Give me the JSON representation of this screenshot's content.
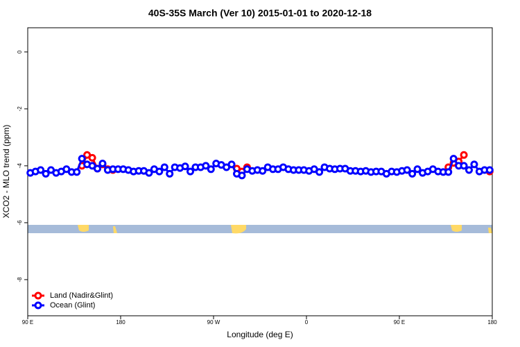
{
  "chart_data": {
    "type": "line",
    "title": "40S-35S March (Ver 10)   2015-01-01 to 2020-12-18",
    "x_label": "Longitude (deg E)",
    "y_label": "XCO2 - MLO trend (ppm)",
    "x": [
      92.5,
      97.5,
      102.5,
      107.5,
      112.5,
      117.5,
      122.5,
      127.5,
      132.5,
      137.5,
      142.5,
      147.5,
      152.5,
      157.5,
      162.5,
      167.5,
      172.5,
      177.5,
      182.5,
      187.5,
      192.5,
      197.5,
      202.5,
      207.5,
      212.5,
      217.5,
      222.5,
      227.5,
      232.5,
      237.5,
      242.5,
      247.5,
      252.5,
      257.5,
      262.5,
      267.5,
      272.5,
      277.5,
      282.5,
      287.5,
      292.5,
      297.5,
      302.5,
      307.5,
      312.5,
      317.5,
      322.5,
      327.5,
      332.5,
      337.5,
      342.5,
      347.5,
      352.5,
      357.5,
      362.5,
      367.5,
      372.5,
      377.5,
      382.5,
      387.5,
      392.5,
      397.5,
      402.5,
      407.5,
      412.5,
      417.5,
      422.5,
      427.5,
      432.5,
      437.5,
      442.5,
      447.5,
      452.5,
      457.5,
      462.5,
      467.5,
      472.5,
      477.5,
      482.5,
      487.5,
      492.5,
      497.5,
      502.5,
      507.5,
      512.5,
      517.5,
      522.5,
      527.5,
      532.5,
      537.5
    ],
    "series": [
      {
        "name": "Land (Nadir&Glint)",
        "color": "#ff0000",
        "values": [
          null,
          null,
          null,
          null,
          null,
          null,
          null,
          null,
          null,
          null,
          -4.0,
          -3.62,
          -3.72,
          -4.1,
          -3.95,
          -4.12,
          -4.15,
          null,
          null,
          null,
          null,
          null,
          null,
          null,
          null,
          null,
          null,
          null,
          null,
          null,
          null,
          null,
          null,
          null,
          null,
          null,
          null,
          null,
          null,
          null,
          -4.1,
          -4.2,
          -4.05,
          null,
          null,
          null,
          null,
          null,
          null,
          null,
          null,
          null,
          null,
          null,
          null,
          null,
          null,
          null,
          null,
          null,
          null,
          null,
          null,
          null,
          null,
          null,
          null,
          null,
          null,
          null,
          null,
          null,
          null,
          null,
          null,
          null,
          null,
          null,
          null,
          null,
          null,
          -4.05,
          -3.9,
          -3.85,
          -3.62,
          null,
          null,
          null,
          null,
          -4.2
        ]
      },
      {
        "name": "Ocean (Glint)",
        "color": "#0000ff",
        "values": [
          -4.25,
          -4.2,
          -4.15,
          -4.28,
          -4.15,
          -4.25,
          -4.2,
          -4.12,
          -4.22,
          -4.22,
          -3.75,
          -3.95,
          -4.0,
          -4.1,
          -3.92,
          -4.15,
          -4.12,
          -4.12,
          -4.12,
          -4.15,
          -4.2,
          -4.18,
          -4.18,
          -4.25,
          -4.12,
          -4.2,
          -4.05,
          -4.28,
          -4.05,
          -4.08,
          -4.02,
          -4.2,
          -4.05,
          -4.05,
          -4.0,
          -4.12,
          -3.92,
          -3.97,
          -4.05,
          -3.95,
          -4.28,
          -4.34,
          -4.12,
          -4.18,
          -4.15,
          -4.18,
          -4.05,
          -4.12,
          -4.12,
          -4.05,
          -4.12,
          -4.15,
          -4.15,
          -4.15,
          -4.18,
          -4.12,
          -4.22,
          -4.05,
          -4.1,
          -4.12,
          -4.1,
          -4.1,
          -4.18,
          -4.18,
          -4.2,
          -4.18,
          -4.22,
          -4.2,
          -4.2,
          -4.28,
          -4.2,
          -4.22,
          -4.18,
          -4.15,
          -4.28,
          -4.12,
          -4.25,
          -4.2,
          -4.12,
          -4.2,
          -4.22,
          -4.22,
          -3.75,
          -4.0,
          -4.0,
          -4.15,
          -3.95,
          -4.2,
          -4.15,
          -4.15
        ]
      }
    ],
    "xlim": [
      90,
      540
    ],
    "xticks": [
      {
        "value": 90,
        "label": "90 E"
      },
      180,
      {
        "value": 270,
        "label": "90 W"
      },
      {
        "value": 360,
        "label": "0"
      },
      {
        "value": 450,
        "label": "90 E"
      },
      {
        "value": 540,
        "label": "180"
      }
    ],
    "ylim": [
      -9.27,
      0.85
    ],
    "yticks": [
      0,
      -2,
      -4,
      -6,
      -8
    ],
    "legend": "bottom-left"
  }
}
